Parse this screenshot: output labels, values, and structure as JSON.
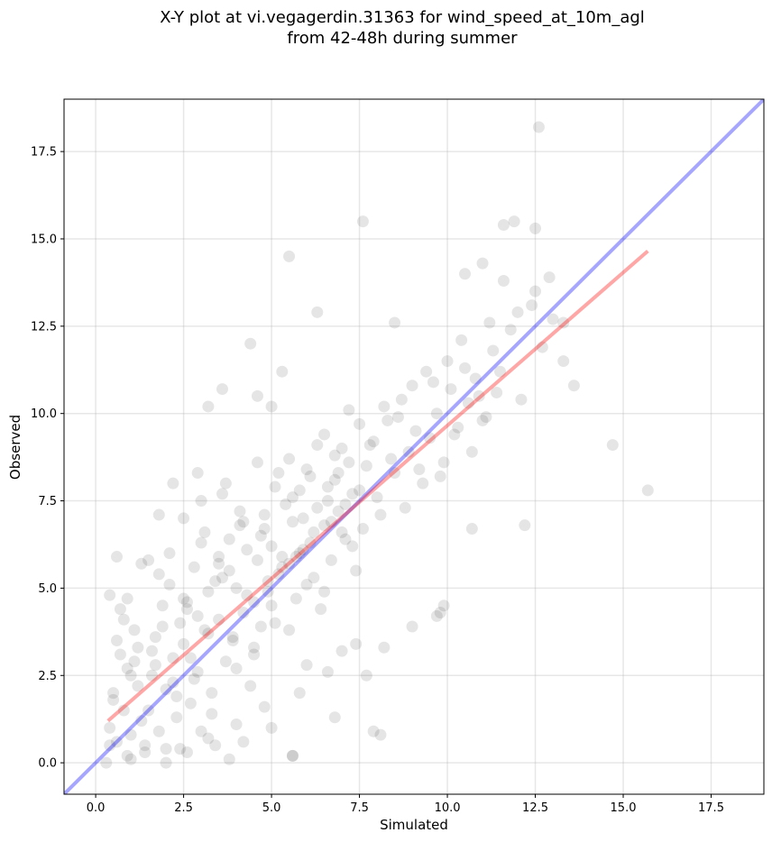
{
  "chart_data": {
    "type": "scatter",
    "title_line1": "X-Y plot at vi.vegagerdin.31363 for wind_speed_at_10m_agl",
    "title_line2": "from 42-48h during summer",
    "xlabel": "Simulated",
    "ylabel": "Observed",
    "xlim": [
      -0.9,
      19.0
    ],
    "ylim": [
      -0.9,
      19.0
    ],
    "xticks": [
      0.0,
      2.5,
      5.0,
      7.5,
      10.0,
      12.5,
      15.0,
      17.5
    ],
    "yticks": [
      0.0,
      2.5,
      5.0,
      7.5,
      10.0,
      12.5,
      15.0,
      17.5
    ],
    "xtick_labels": [
      "0.0",
      "2.5",
      "5.0",
      "7.5",
      "10.0",
      "12.5",
      "15.0",
      "17.5"
    ],
    "ytick_labels": [
      "0.0",
      "2.5",
      "5.0",
      "7.5",
      "10.0",
      "12.5",
      "15.0",
      "17.5"
    ],
    "grid": true,
    "point_color": "#000000",
    "point_alpha": 0.1,
    "series": [
      {
        "marker": "circle",
        "x": [
          0.4,
          0.5,
          0.6,
          0.7,
          0.8,
          0.9,
          1.0,
          1.1,
          1.2,
          1.3,
          0.4,
          0.6,
          0.8,
          1.0,
          1.2,
          1.4,
          0.5,
          0.7,
          0.9,
          1.1,
          1.5,
          1.6,
          1.7,
          1.8,
          1.9,
          2.0,
          2.1,
          2.2,
          2.3,
          2.4,
          1.5,
          1.7,
          1.9,
          2.1,
          2.3,
          2.5,
          1.6,
          1.8,
          2.0,
          2.2,
          2.5,
          2.6,
          2.7,
          2.8,
          2.9,
          3.0,
          3.1,
          3.2,
          3.3,
          3.4,
          2.5,
          2.7,
          2.9,
          3.1,
          3.3,
          3.5,
          2.6,
          2.8,
          3.0,
          3.2,
          3.5,
          3.6,
          3.7,
          3.8,
          3.9,
          4.0,
          4.1,
          4.2,
          4.3,
          4.4,
          3.5,
          3.7,
          3.9,
          4.1,
          4.3,
          4.5,
          3.6,
          3.8,
          4.0,
          4.2,
          4.5,
          4.6,
          4.7,
          4.8,
          4.9,
          5.0,
          5.1,
          5.2,
          5.3,
          5.4,
          4.5,
          4.7,
          4.9,
          5.1,
          5.3,
          5.5,
          4.6,
          4.8,
          5.0,
          5.2,
          5.5,
          5.6,
          5.7,
          5.8,
          5.9,
          6.0,
          6.1,
          6.2,
          6.3,
          6.4,
          5.5,
          5.7,
          5.9,
          6.1,
          6.3,
          6.5,
          5.6,
          5.8,
          6.0,
          6.2,
          6.5,
          6.6,
          6.7,
          6.8,
          6.9,
          7.0,
          7.1,
          7.2,
          7.3,
          7.4,
          6.5,
          6.7,
          6.9,
          7.1,
          7.3,
          7.5,
          6.6,
          6.8,
          7.0,
          7.2,
          7.5,
          7.7,
          7.9,
          8.1,
          8.3,
          8.5,
          8.7,
          8.9,
          9.1,
          9.3,
          7.6,
          7.8,
          8.0,
          8.2,
          8.4,
          8.6,
          8.8,
          9.0,
          9.2,
          9.4,
          9.5,
          9.7,
          9.9,
          10.1,
          10.3,
          10.5,
          10.7,
          10.9,
          11.1,
          11.3,
          9.6,
          9.8,
          10.0,
          10.2,
          10.4,
          10.6,
          10.8,
          11.0,
          11.2,
          11.4,
          11.5,
          11.8,
          12.1,
          12.4,
          12.7,
          13.0,
          13.3,
          11.6,
          12.0,
          12.5,
          0.3,
          0.4,
          0.6,
          0.9,
          1.3,
          1.8,
          2.2,
          2.9,
          3.2,
          3.6,
          4.4,
          5.0,
          5.5,
          5.6,
          6.3,
          6.8,
          7.6,
          7.9,
          8.1,
          8.5,
          9.7,
          9.9,
          10.7,
          11.0,
          11.6,
          12.2,
          12.6,
          13.6,
          14.7,
          15.7,
          7.7,
          5.6,
          3.4,
          4.6,
          5.3,
          11.9,
          12.5,
          12.9,
          13.3,
          10.5,
          2.6,
          3.2,
          4.0,
          4.8,
          5.8,
          6.6,
          7.4,
          8.2,
          9.0,
          9.8,
          1.0,
          1.4,
          2.0,
          2.4,
          3.0,
          3.8,
          4.2,
          5.0,
          6.0,
          7.0
        ],
        "y": [
          1.0,
          2.0,
          0.6,
          3.1,
          1.5,
          2.7,
          0.8,
          3.8,
          2.2,
          1.2,
          4.8,
          3.5,
          4.1,
          2.5,
          3.3,
          0.5,
          1.8,
          4.4,
          0.2,
          2.9,
          1.5,
          2.5,
          3.6,
          0.9,
          4.5,
          2.1,
          5.1,
          3.0,
          1.3,
          4.0,
          5.8,
          2.8,
          3.9,
          6.0,
          1.9,
          4.7,
          3.2,
          5.4,
          0.4,
          2.3,
          3.4,
          4.6,
          1.7,
          5.6,
          2.6,
          6.3,
          3.8,
          4.9,
          2.0,
          5.2,
          7.0,
          3.0,
          4.2,
          6.6,
          1.4,
          5.9,
          4.4,
          2.4,
          7.5,
          3.7,
          4.1,
          5.3,
          2.9,
          6.4,
          3.5,
          5.0,
          7.2,
          4.3,
          6.1,
          2.2,
          5.7,
          8.0,
          3.6,
          6.8,
          4.8,
          3.1,
          7.7,
          5.5,
          2.7,
          6.9,
          4.6,
          5.8,
          3.9,
          7.1,
          5.2,
          6.2,
          4.0,
          8.3,
          5.6,
          7.4,
          3.3,
          6.5,
          4.9,
          7.9,
          5.9,
          3.8,
          8.6,
          6.7,
          4.5,
          5.4,
          5.7,
          6.9,
          4.7,
          7.8,
          6.1,
          5.1,
          8.2,
          6.6,
          7.3,
          4.4,
          8.7,
          5.9,
          7.0,
          6.3,
          9.1,
          4.9,
          7.6,
          6.0,
          8.4,
          5.3,
          6.8,
          7.5,
          5.8,
          8.1,
          7.2,
          9.0,
          6.4,
          8.6,
          7.7,
          5.5,
          9.4,
          6.9,
          8.3,
          7.4,
          6.2,
          9.7,
          7.9,
          8.8,
          6.6,
          10.1,
          7.8,
          8.5,
          9.2,
          7.1,
          9.8,
          8.3,
          10.4,
          8.9,
          9.5,
          8.0,
          6.7,
          9.1,
          7.6,
          10.2,
          8.7,
          9.9,
          7.3,
          10.8,
          8.4,
          11.2,
          9.3,
          10.0,
          8.6,
          10.7,
          9.6,
          11.3,
          8.9,
          10.5,
          9.9,
          11.8,
          10.9,
          8.2,
          11.5,
          9.4,
          12.1,
          10.3,
          11.0,
          9.8,
          12.6,
          10.6,
          11.2,
          12.4,
          10.4,
          13.1,
          11.9,
          12.7,
          11.5,
          13.8,
          12.9,
          13.5,
          0.0,
          0.5,
          5.9,
          4.7,
          5.7,
          7.1,
          8.0,
          8.3,
          10.2,
          10.7,
          12.0,
          10.2,
          14.5,
          0.2,
          12.9,
          1.3,
          15.5,
          0.9,
          0.8,
          12.6,
          4.2,
          4.5,
          6.7,
          14.3,
          15.4,
          6.8,
          18.2,
          10.8,
          9.1,
          7.8,
          2.5,
          0.2,
          0.5,
          10.5,
          11.2,
          15.5,
          15.3,
          13.9,
          12.6,
          14.0,
          0.3,
          0.7,
          1.1,
          1.6,
          2.0,
          2.6,
          3.4,
          3.3,
          3.9,
          4.3,
          0.1,
          0.3,
          0.0,
          0.4,
          0.9,
          0.1,
          0.6,
          1.0,
          2.8,
          3.2
        ]
      }
    ],
    "lines": [
      {
        "color": "#0000ff",
        "alpha": 0.35,
        "x": [
          -0.9,
          19.0
        ],
        "y": [
          -0.9,
          19.0
        ]
      },
      {
        "color": "#ff0000",
        "alpha": 0.35,
        "x": [
          0.35,
          15.7
        ],
        "y": [
          1.2,
          14.65
        ]
      }
    ]
  }
}
